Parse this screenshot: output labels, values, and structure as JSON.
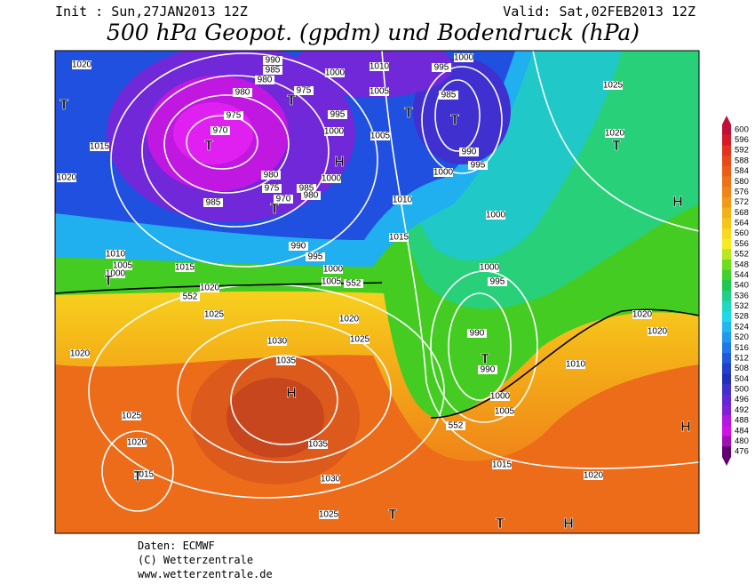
{
  "header": {
    "init": "Init : Sun,27JAN2013 12Z",
    "valid": "Valid: Sat,02FEB2013 12Z",
    "title": "500 hPa Geopot. (gpdm) und Bodendruck (hPa)"
  },
  "colorbar": {
    "labels": [
      600,
      596,
      592,
      588,
      584,
      580,
      576,
      572,
      568,
      564,
      560,
      556,
      552,
      548,
      544,
      540,
      536,
      532,
      528,
      524,
      520,
      516,
      512,
      508,
      504,
      500,
      496,
      492,
      488,
      484,
      480,
      476
    ],
    "colors": [
      "#c0103a",
      "#d81a28",
      "#e4321e",
      "#e8481a",
      "#ec5c18",
      "#ee7018",
      "#f08418",
      "#f29a18",
      "#f4b018",
      "#f6c41a",
      "#f8d820",
      "#f4ec20",
      "#b8e820",
      "#70dc20",
      "#40d030",
      "#20c850",
      "#20d08a",
      "#20d8c0",
      "#20d8e8",
      "#20b8f0",
      "#2098f0",
      "#2078e8",
      "#2058e0",
      "#2040d0",
      "#2030b8",
      "#4030d0",
      "#6028d8",
      "#8020d8",
      "#b018e0",
      "#d010e8",
      "#a010b0",
      "#600070"
    ]
  },
  "isobar_labels": [
    1020,
    990,
    985,
    980,
    975,
    980,
    975,
    970,
    1000,
    1010,
    995,
    1000,
    1005,
    985,
    995,
    1000,
    1005,
    1025,
    1020,
    990,
    995,
    1015,
    1020,
    980,
    1000,
    1000,
    975,
    985,
    970,
    980,
    985,
    1010,
    1000,
    1015,
    990,
    995,
    1010,
    1005,
    1000,
    1015,
    1000,
    1005,
    552,
    1000,
    995,
    1020,
    552,
    1025,
    1020,
    1025,
    1020,
    1020,
    1030,
    990,
    1020,
    1035,
    990,
    1010,
    1000,
    1005,
    552,
    1025,
    1035,
    1020,
    1015,
    1015,
    1030,
    1020,
    1025
  ],
  "pressure_centers": [
    "T",
    "T",
    "T",
    "H",
    "T",
    "T",
    "T",
    "T",
    "T",
    "H",
    "H",
    "T",
    "H",
    "T",
    "T",
    "T",
    "H"
  ],
  "footer": [
    "Daten: ECMWF",
    "(C) Wetterzentrale",
    "www.wetterzentrale.de"
  ]
}
